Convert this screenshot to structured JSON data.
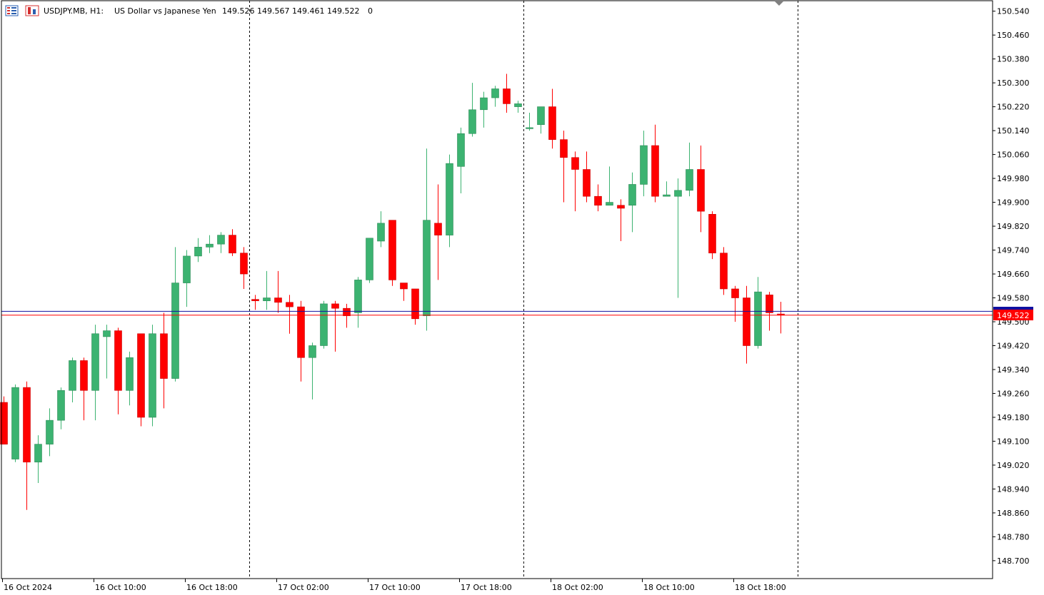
{
  "header": {
    "symbol": "USDJPY.MB, H1:",
    "description": "US Dollar vs Japanese Yen",
    "ohlc": "149.526 149.567 149.461 149.522",
    "volume": "0",
    "icon": "chart-type-icon"
  },
  "colors": {
    "bull": "#3cb371",
    "bear": "#ff0000",
    "bid_line": "#ff0000",
    "ask_line": "#1010a0",
    "price_tag": "#ff0000",
    "grid": "#000000"
  },
  "chart_data": {
    "type": "candlestick",
    "title": "USDJPY.MB, H1",
    "ylim": [
      148.64,
      150.575
    ],
    "yticks": [
      150.54,
      150.46,
      150.38,
      150.3,
      150.22,
      150.14,
      150.06,
      149.98,
      149.9,
      149.82,
      149.74,
      149.66,
      149.58,
      149.5,
      149.42,
      149.34,
      149.26,
      149.18,
      149.1,
      149.02,
      148.94,
      148.86,
      148.78,
      148.7
    ],
    "ytick_labels": [
      "150.540",
      "150.460",
      "150.380",
      "150.300",
      "150.220",
      "150.140",
      "150.060",
      "149.980",
      "149.900",
      "149.820",
      "149.740",
      "149.660",
      "149.580",
      "149.500",
      "149.420",
      "149.340",
      "149.260",
      "149.180",
      "149.100",
      "149.020",
      "148.940",
      "148.860",
      "148.780",
      "148.700"
    ],
    "xtick_labels": [
      {
        "index": 0,
        "label": "16 Oct 2024"
      },
      {
        "index": 8,
        "label": "16 Oct 10:00"
      },
      {
        "index": 16,
        "label": "16 Oct 18:00"
      },
      {
        "index": 24,
        "label": "17 Oct 02:00"
      },
      {
        "index": 32,
        "label": "17 Oct 10:00"
      },
      {
        "index": 40,
        "label": "17 Oct 18:00"
      },
      {
        "index": 48,
        "label": "18 Oct 02:00"
      },
      {
        "index": 56,
        "label": "18 Oct 10:00"
      },
      {
        "index": 64,
        "label": "18 Oct 18:00"
      }
    ],
    "day_separators": [
      21.5,
      45.5,
      69.5
    ],
    "current_price": 149.522,
    "current_price_label": "149.522",
    "ask_price": 149.535,
    "candles": [
      {
        "o": 149.23,
        "h": 149.25,
        "l": 149.09,
        "c": 149.09
      },
      {
        "o": 149.04,
        "h": 149.29,
        "l": 149.03,
        "c": 149.28
      },
      {
        "o": 149.28,
        "h": 149.3,
        "l": 148.87,
        "c": 149.03
      },
      {
        "o": 149.03,
        "h": 149.12,
        "l": 148.96,
        "c": 149.09
      },
      {
        "o": 149.09,
        "h": 149.21,
        "l": 149.05,
        "c": 149.17
      },
      {
        "o": 149.17,
        "h": 149.28,
        "l": 149.14,
        "c": 149.27
      },
      {
        "o": 149.27,
        "h": 149.38,
        "l": 149.23,
        "c": 149.37
      },
      {
        "o": 149.37,
        "h": 149.38,
        "l": 149.17,
        "c": 149.27
      },
      {
        "o": 149.27,
        "h": 149.49,
        "l": 149.17,
        "c": 149.46
      },
      {
        "o": 149.45,
        "h": 149.49,
        "l": 149.31,
        "c": 149.47
      },
      {
        "o": 149.47,
        "h": 149.48,
        "l": 149.19,
        "c": 149.27
      },
      {
        "o": 149.27,
        "h": 149.4,
        "l": 149.22,
        "c": 149.38
      },
      {
        "o": 149.46,
        "h": 149.46,
        "l": 149.15,
        "c": 149.18
      },
      {
        "o": 149.18,
        "h": 149.49,
        "l": 149.15,
        "c": 149.46
      },
      {
        "o": 149.46,
        "h": 149.53,
        "l": 149.21,
        "c": 149.31
      },
      {
        "o": 149.31,
        "h": 149.75,
        "l": 149.3,
        "c": 149.63
      },
      {
        "o": 149.63,
        "h": 149.74,
        "l": 149.55,
        "c": 149.72
      },
      {
        "o": 149.72,
        "h": 149.78,
        "l": 149.7,
        "c": 149.75
      },
      {
        "o": 149.75,
        "h": 149.79,
        "l": 149.73,
        "c": 149.76
      },
      {
        "o": 149.76,
        "h": 149.8,
        "l": 149.73,
        "c": 149.79
      },
      {
        "o": 149.79,
        "h": 149.81,
        "l": 149.72,
        "c": 149.73
      },
      {
        "o": 149.73,
        "h": 149.75,
        "l": 149.61,
        "c": 149.66
      },
      {
        "o": 149.575,
        "h": 149.59,
        "l": 149.54,
        "c": 149.57
      },
      {
        "o": 149.57,
        "h": 149.67,
        "l": 149.54,
        "c": 149.58
      },
      {
        "o": 149.58,
        "h": 149.67,
        "l": 149.53,
        "c": 149.565
      },
      {
        "o": 149.565,
        "h": 149.59,
        "l": 149.46,
        "c": 149.55
      },
      {
        "o": 149.55,
        "h": 149.57,
        "l": 149.3,
        "c": 149.38
      },
      {
        "o": 149.38,
        "h": 149.43,
        "l": 149.24,
        "c": 149.42
      },
      {
        "o": 149.42,
        "h": 149.57,
        "l": 149.41,
        "c": 149.56
      },
      {
        "o": 149.56,
        "h": 149.57,
        "l": 149.4,
        "c": 149.545
      },
      {
        "o": 149.545,
        "h": 149.56,
        "l": 149.48,
        "c": 149.52
      },
      {
        "o": 149.53,
        "h": 149.65,
        "l": 149.48,
        "c": 149.64
      },
      {
        "o": 149.64,
        "h": 149.78,
        "l": 149.63,
        "c": 149.78
      },
      {
        "o": 149.77,
        "h": 149.87,
        "l": 149.75,
        "c": 149.83
      },
      {
        "o": 149.84,
        "h": 149.84,
        "l": 149.62,
        "c": 149.64
      },
      {
        "o": 149.63,
        "h": 149.63,
        "l": 149.57,
        "c": 149.61
      },
      {
        "o": 149.61,
        "h": 149.61,
        "l": 149.49,
        "c": 149.51
      },
      {
        "o": 149.52,
        "h": 150.08,
        "l": 149.47,
        "c": 149.84
      },
      {
        "o": 149.83,
        "h": 149.96,
        "l": 149.64,
        "c": 149.79
      },
      {
        "o": 149.79,
        "h": 150.06,
        "l": 149.75,
        "c": 150.03
      },
      {
        "o": 150.02,
        "h": 150.15,
        "l": 149.93,
        "c": 150.13
      },
      {
        "o": 150.13,
        "h": 150.3,
        "l": 150.12,
        "c": 150.21
      },
      {
        "o": 150.21,
        "h": 150.27,
        "l": 150.15,
        "c": 150.25
      },
      {
        "o": 150.25,
        "h": 150.29,
        "l": 150.22,
        "c": 150.28
      },
      {
        "o": 150.28,
        "h": 150.33,
        "l": 150.2,
        "c": 150.23
      },
      {
        "o": 150.22,
        "h": 150.24,
        "l": 150.2,
        "c": 150.23
      },
      {
        "o": 150.15,
        "h": 150.2,
        "l": 150.14,
        "c": 150.15
      },
      {
        "o": 150.16,
        "h": 150.22,
        "l": 150.13,
        "c": 150.22
      },
      {
        "o": 150.22,
        "h": 150.28,
        "l": 150.08,
        "c": 150.11
      },
      {
        "o": 150.11,
        "h": 150.14,
        "l": 149.9,
        "c": 150.05
      },
      {
        "o": 150.05,
        "h": 150.07,
        "l": 149.87,
        "c": 150.01
      },
      {
        "o": 150.01,
        "h": 150.07,
        "l": 149.9,
        "c": 149.92
      },
      {
        "o": 149.92,
        "h": 149.96,
        "l": 149.87,
        "c": 149.89
      },
      {
        "o": 149.89,
        "h": 150.02,
        "l": 149.89,
        "c": 149.9
      },
      {
        "o": 149.89,
        "h": 149.91,
        "l": 149.77,
        "c": 149.88
      },
      {
        "o": 149.89,
        "h": 150.0,
        "l": 149.8,
        "c": 149.96
      },
      {
        "o": 149.96,
        "h": 150.14,
        "l": 149.92,
        "c": 150.09
      },
      {
        "o": 150.09,
        "h": 150.16,
        "l": 149.9,
        "c": 149.92
      },
      {
        "o": 149.92,
        "h": 149.97,
        "l": 149.92,
        "c": 149.925
      },
      {
        "o": 149.92,
        "h": 149.98,
        "l": 149.58,
        "c": 149.94
      },
      {
        "o": 149.94,
        "h": 150.1,
        "l": 149.92,
        "c": 150.01
      },
      {
        "o": 150.01,
        "h": 150.09,
        "l": 149.8,
        "c": 149.87
      },
      {
        "o": 149.86,
        "h": 149.87,
        "l": 149.71,
        "c": 149.73
      },
      {
        "o": 149.73,
        "h": 149.75,
        "l": 149.59,
        "c": 149.61
      },
      {
        "o": 149.61,
        "h": 149.62,
        "l": 149.5,
        "c": 149.58
      },
      {
        "o": 149.58,
        "h": 149.62,
        "l": 149.36,
        "c": 149.42
      },
      {
        "o": 149.42,
        "h": 149.65,
        "l": 149.41,
        "c": 149.6
      },
      {
        "o": 149.59,
        "h": 149.6,
        "l": 149.47,
        "c": 149.53
      },
      {
        "o": 149.526,
        "h": 149.567,
        "l": 149.461,
        "c": 149.522
      }
    ]
  }
}
